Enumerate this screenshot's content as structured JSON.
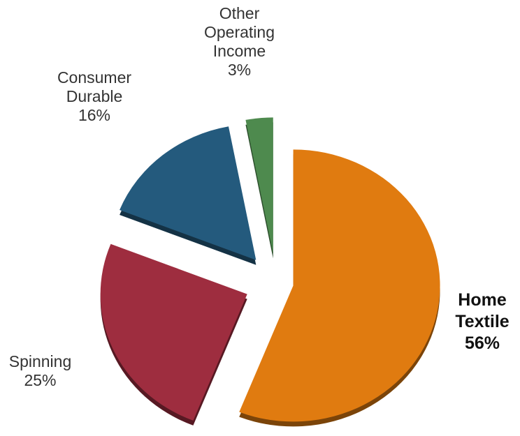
{
  "chart_data": {
    "type": "pie",
    "categories": [
      "Home Textile",
      "Spinning",
      "Consumer Durable",
      "Other Operating Income"
    ],
    "values": [
      56,
      25,
      16,
      3
    ],
    "value_labels": [
      "56%",
      "25%",
      "16%",
      "3%"
    ],
    "colors": [
      "#e07b10",
      "#9e2d3f",
      "#245a7d",
      "#4e8a4e"
    ],
    "start_angle": 0,
    "direction": "clockwise",
    "exploded": true
  }
}
